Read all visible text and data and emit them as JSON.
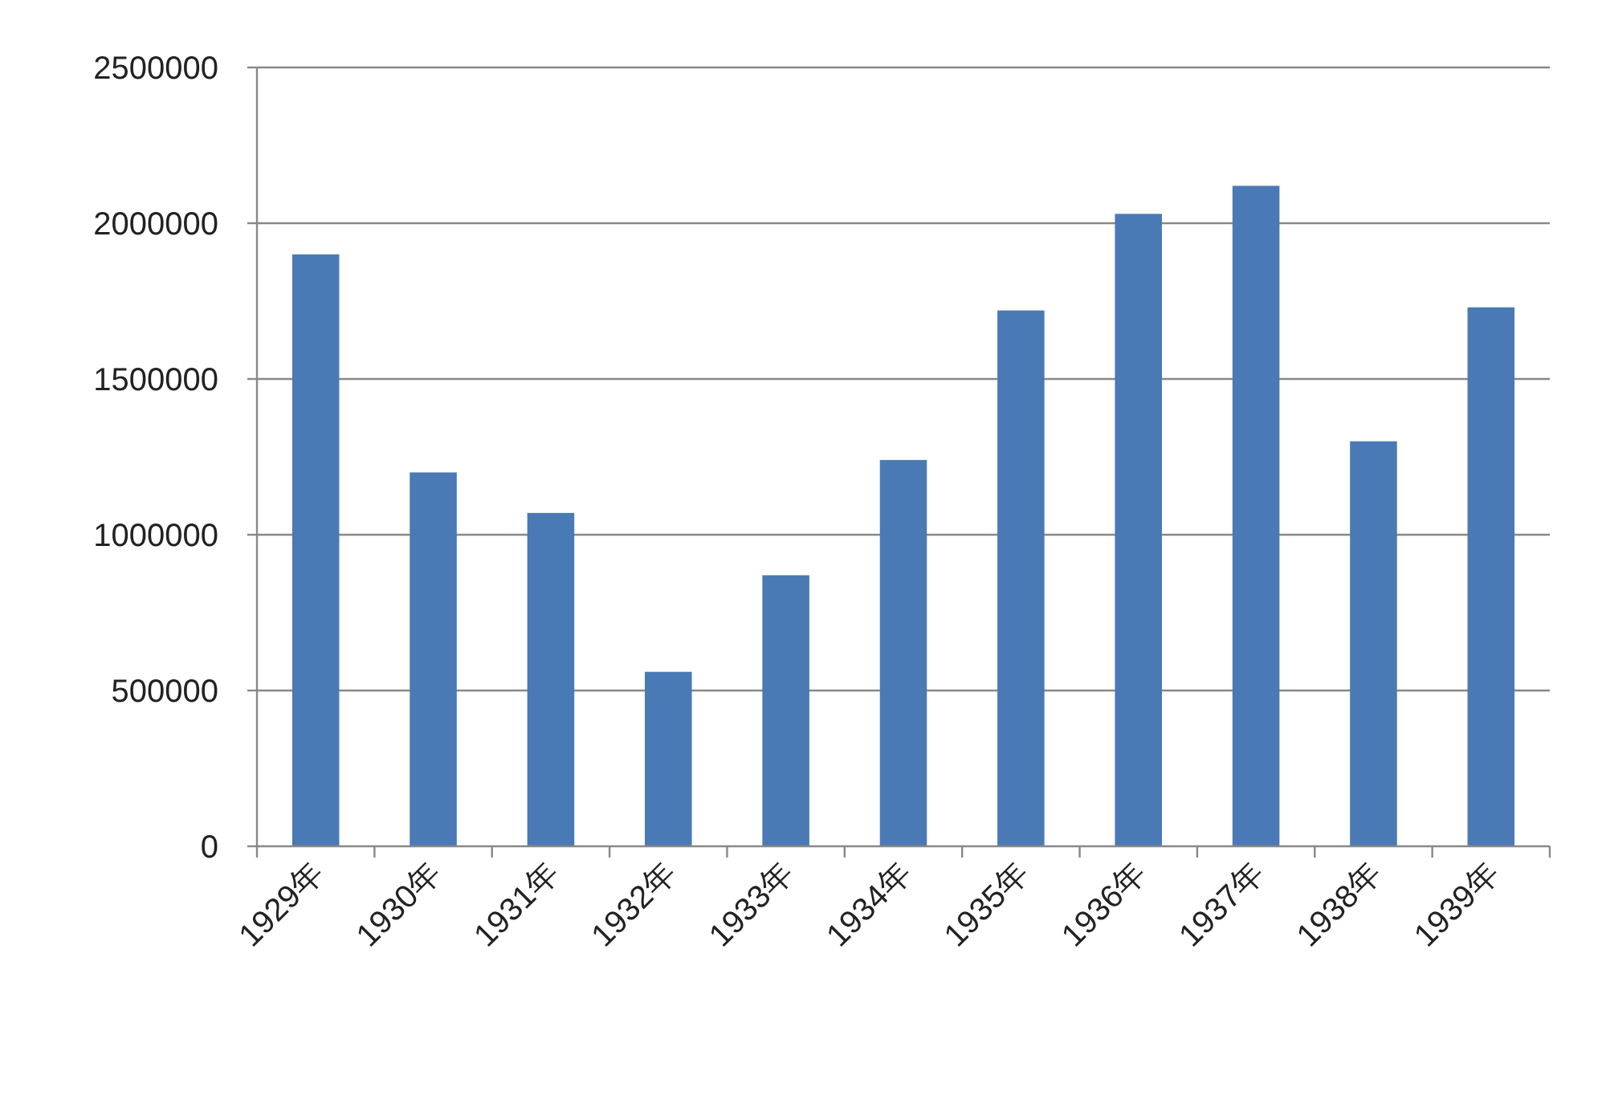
{
  "chart_data": {
    "type": "bar",
    "categories": [
      "1929年",
      "1930年",
      "1931年",
      "1932年",
      "1933年",
      "1934年",
      "1935年",
      "1936年",
      "1937年",
      "1938年",
      "1939年"
    ],
    "values": [
      1900000,
      1200000,
      1070000,
      560000,
      870000,
      1240000,
      1720000,
      2030000,
      2120000,
      1300000,
      1730000
    ],
    "color": "#4a7ab5",
    "ylim": [
      0,
      2500000
    ],
    "yticks": [
      0,
      500000,
      1000000,
      1500000,
      2000000,
      2500000
    ],
    "grid": "y"
  }
}
